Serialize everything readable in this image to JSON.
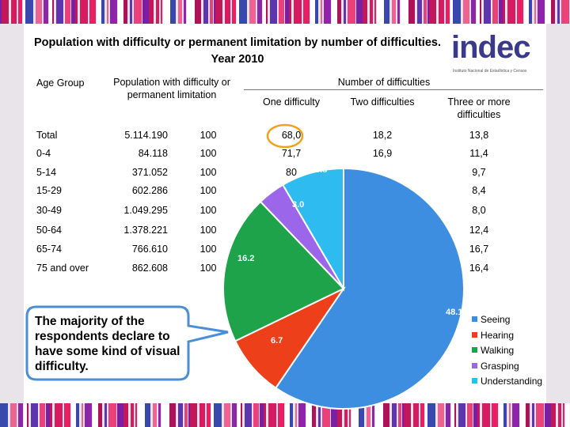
{
  "title": "Population with difficulty or permanent limitation by number of difficulties. Year 2010",
  "logo": {
    "name": "indec",
    "subtitle": "Instituto Nacional de Estadística y Censos"
  },
  "table": {
    "headers": {
      "age_group": "Age Group",
      "population": "Population with difficulty or permanent limitation",
      "number_of_difficulties": "Number of difficulties",
      "one": "One difficulty",
      "two": "Two difficulties",
      "three": "Three or more difficulties"
    },
    "rows": [
      {
        "age": "Total",
        "population": "5.114.190",
        "pct": "100",
        "one": "68,0",
        "two": "18,2",
        "three": "13,8"
      },
      {
        "age": "0-4",
        "population": "84.118",
        "pct": "100",
        "one": "71,7",
        "two": "16,9",
        "three": "11,4"
      },
      {
        "age": "5-14",
        "population": "371.052",
        "pct": "100",
        "one": "80",
        "two": "",
        "three": "9,7"
      },
      {
        "age": "15-29",
        "population": "602.286",
        "pct": "100",
        "one": "",
        "two": "",
        "three": "8,4"
      },
      {
        "age": "30-49",
        "population": "1.049.295",
        "pct": "100",
        "one": "",
        "two": "",
        "three": "8,0"
      },
      {
        "age": "50-64",
        "population": "1.378.221",
        "pct": "100",
        "one": "",
        "two": "",
        "three": "12,4"
      },
      {
        "age": "65-74",
        "population": "766.610",
        "pct": "100",
        "one": "",
        "two": "",
        "three": "16,7"
      },
      {
        "age": "75 and over",
        "population": "862.608",
        "pct": "100",
        "one": "",
        "two": "",
        "three": "16,4"
      }
    ]
  },
  "callout": {
    "text": "The majority of the respondents declare to have some kind of visual difficulty."
  },
  "chart_data": {
    "type": "pie",
    "title": "",
    "categories": [
      "Seeing",
      "Hearing",
      "Walking",
      "Grasping",
      "Understanding"
    ],
    "values": [
      48.1,
      6.7,
      16.2,
      3.0,
      6.8
    ],
    "labels": [
      "48.1",
      "6.7",
      "16.2",
      "3.0",
      "6.8"
    ],
    "colors": [
      "#3d8ee0",
      "#ee3f1b",
      "#1fa34a",
      "#9b66ea",
      "#2ebcf0"
    ],
    "legend_position": "right"
  }
}
